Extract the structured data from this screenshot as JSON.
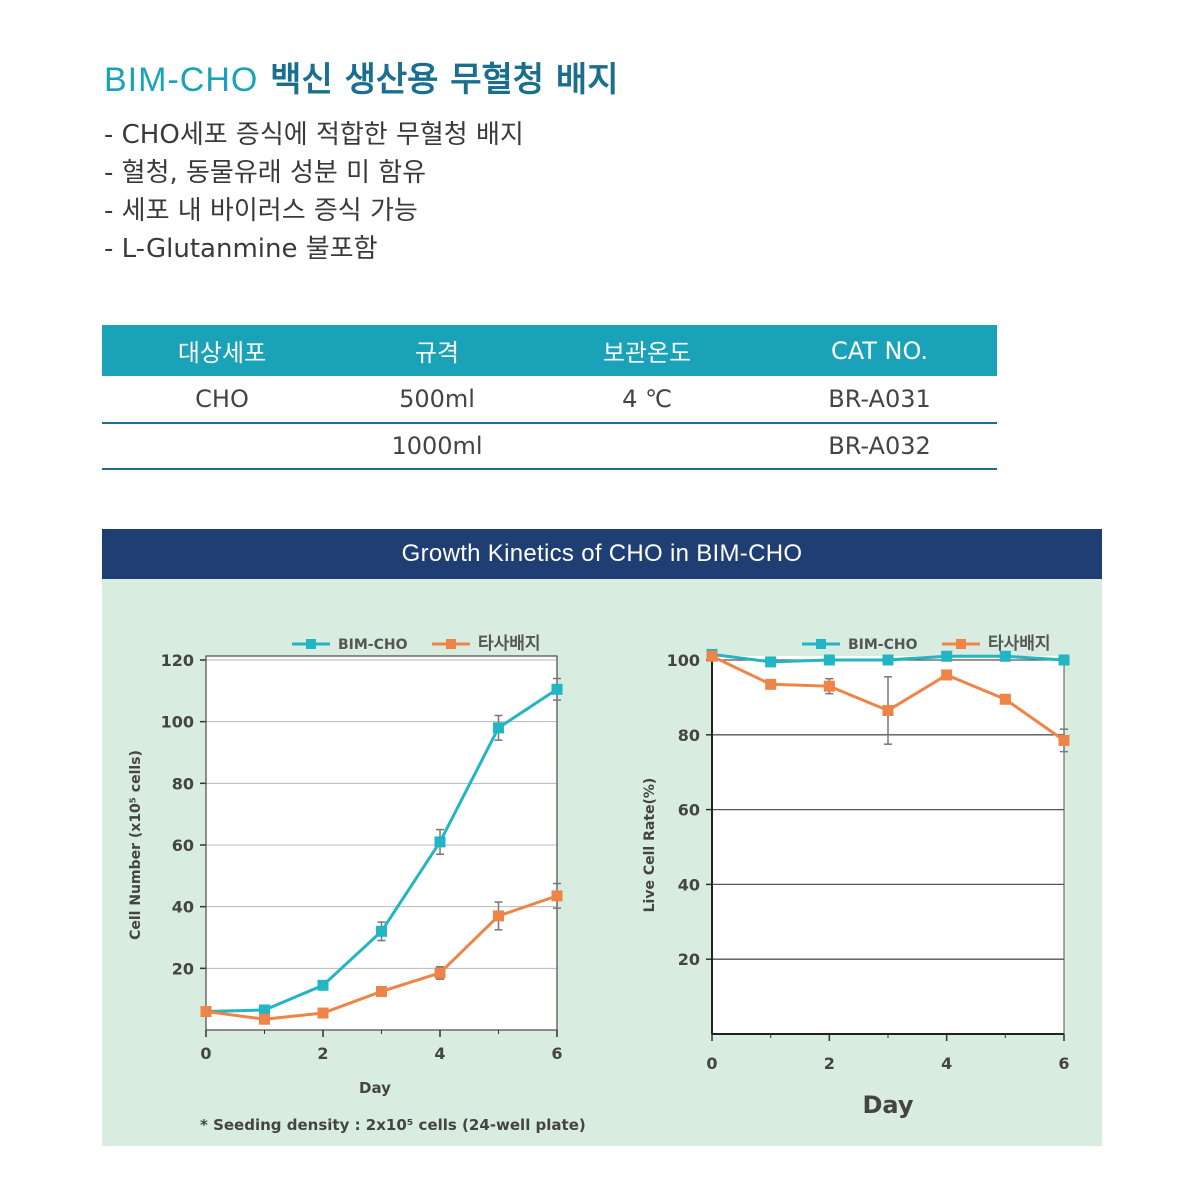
{
  "header": {
    "brand": "BIM-CHO",
    "title_rest": "백신 생산용 무혈청 배지"
  },
  "features": [
    "- CHO세포 증식에 적합한 무혈청 배지",
    "- 혈청, 동물유래 성분 미 함유",
    "- 세포 내 바이러스 증식 가능",
    "- L-Glutanmine 불포함"
  ],
  "spec_table": {
    "columns": [
      "대상세포",
      "규격",
      "보관온도",
      "CAT NO."
    ],
    "rows": [
      [
        "CHO",
        "500ml",
        "4 ℃",
        "BR-A031"
      ],
      [
        "",
        "1000ml",
        "",
        "BR-A032"
      ]
    ]
  },
  "panel": {
    "title": "Growth Kinetics of CHO in BIM-CHO",
    "footnote": "* Seeding density : 2x10⁵ cells (24-well plate)"
  },
  "colors": {
    "teal": "#1aa3b8",
    "navy": "#1f3e73",
    "series_bim": "#22b5c4",
    "series_other": "#ee8447",
    "panel_bg": "#d8ece0"
  },
  "chart_data": [
    {
      "type": "line",
      "xlabel": "Day",
      "ylabel": "Cell Number (x10⁵ cells)",
      "xlim": [
        0,
        6
      ],
      "ylim": [
        0,
        120
      ],
      "xticks": [
        "0",
        "2",
        "4",
        "6"
      ],
      "yticks": [
        "20",
        "40",
        "60",
        "80",
        "100",
        "120"
      ],
      "grid": true,
      "legend": "top",
      "x": [
        0,
        1,
        2,
        3,
        4,
        5,
        6
      ],
      "series": [
        {
          "name": "BIM-CHO",
          "values": [
            6,
            6.5,
            14.5,
            32,
            61,
            98,
            110.5
          ],
          "errors": [
            0,
            0,
            0,
            3,
            4,
            4,
            3.5
          ]
        },
        {
          "name": "타사배지",
          "values": [
            6,
            3.5,
            5.5,
            12.5,
            18.5,
            37,
            43.5
          ],
          "errors": [
            0,
            0,
            0,
            0,
            2,
            4.5,
            4
          ]
        }
      ]
    },
    {
      "type": "line",
      "xlabel": "Day",
      "ylabel": "Live Cell Rate(%)",
      "xlim": [
        0,
        6
      ],
      "ylim": [
        0,
        100
      ],
      "xticks": [
        "0",
        "2",
        "4",
        "6"
      ],
      "yticks": [
        "20",
        "40",
        "60",
        "80",
        "100"
      ],
      "grid": true,
      "legend": "top",
      "x": [
        0,
        1,
        2,
        3,
        4,
        5,
        6
      ],
      "series": [
        {
          "name": "BIM-CHO",
          "values": [
            101.5,
            99.5,
            100,
            100,
            101,
            101,
            100
          ],
          "errors": [
            0,
            0,
            0,
            0,
            0,
            0,
            0
          ]
        },
        {
          "name": "타사배지",
          "values": [
            101,
            93.5,
            93,
            86.5,
            96,
            89.5,
            78.5
          ],
          "errors": [
            0,
            0,
            2,
            9,
            0,
            0,
            3
          ]
        }
      ]
    }
  ]
}
